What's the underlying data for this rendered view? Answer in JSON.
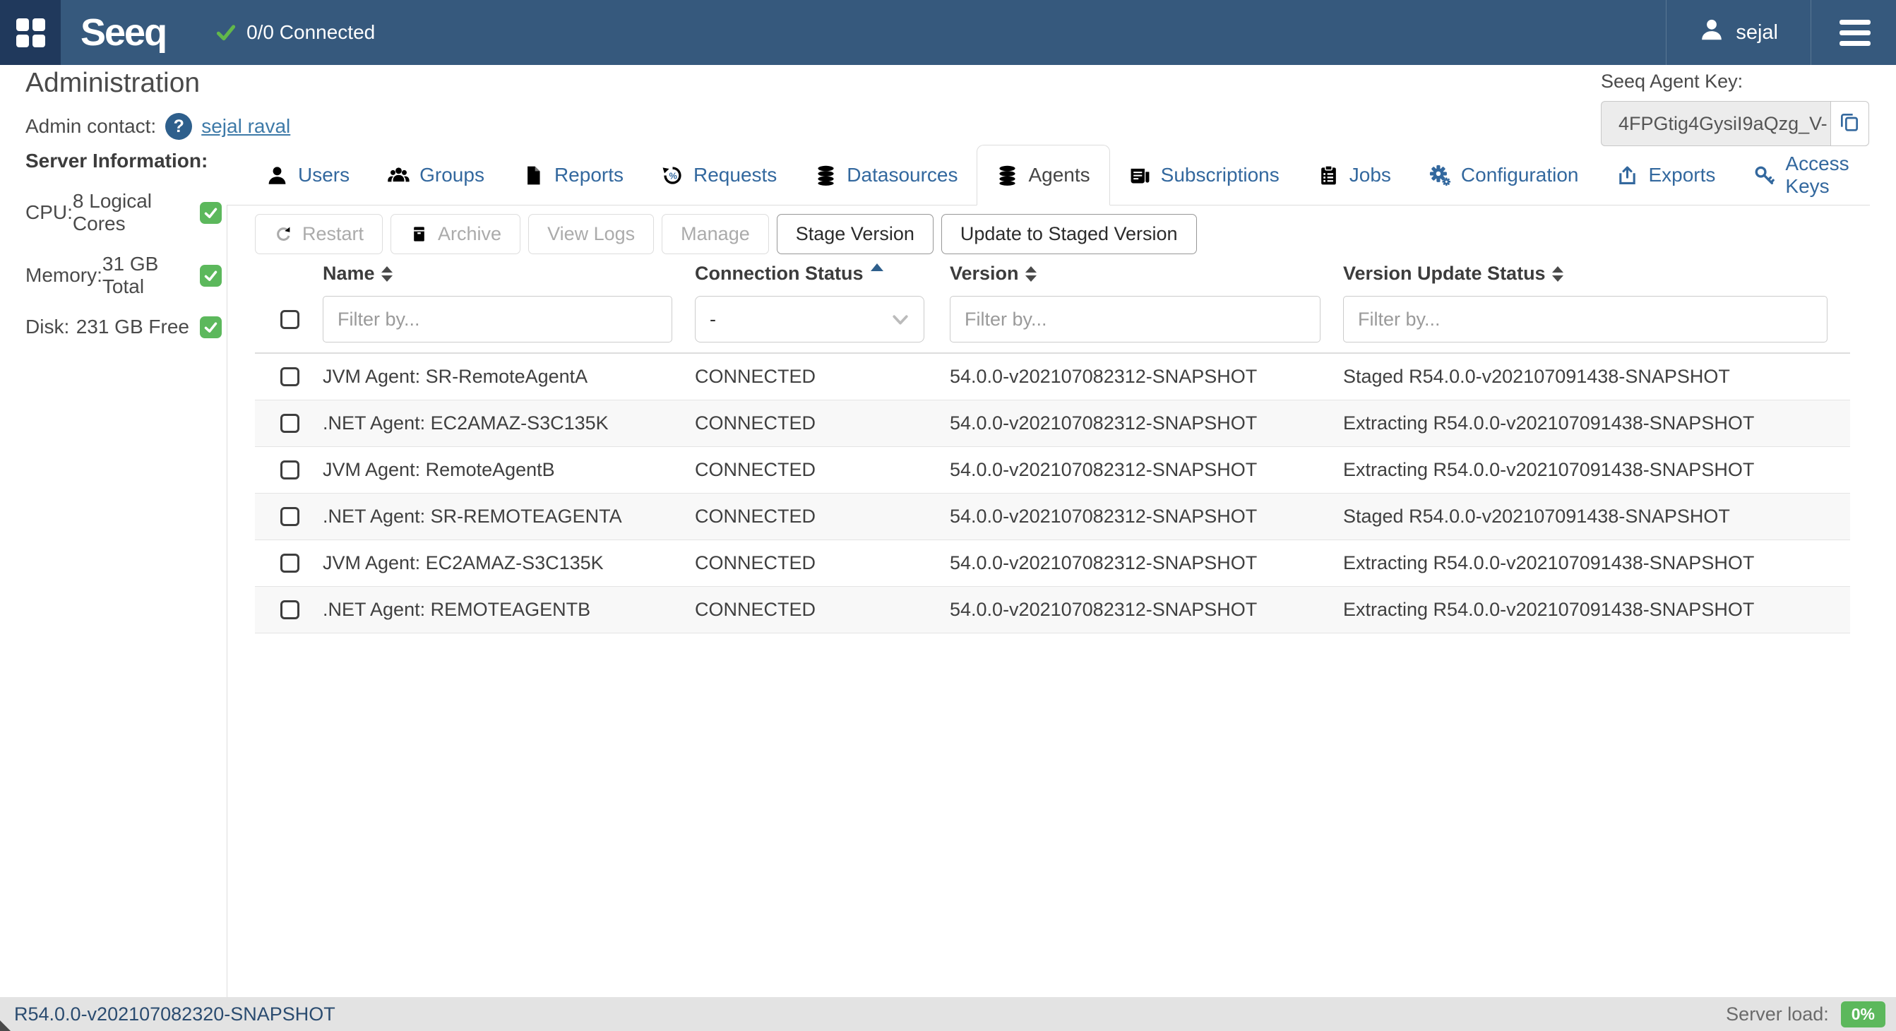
{
  "topbar": {
    "brand": "Seeq",
    "connected_label": "0/0 Connected",
    "username": "sejal"
  },
  "header": {
    "title": "Administration",
    "admin_contact_label": "Admin contact:",
    "admin_contact_name": "sejal raval",
    "agent_key_label": "Seeq Agent Key:",
    "agent_key_value": "4FPGtig4GysiI9aQzg_V-"
  },
  "server_info": {
    "title": "Server Information:",
    "rows": [
      {
        "label": "CPU:",
        "value": "8 Logical Cores",
        "status": "ok"
      },
      {
        "label": "Memory:",
        "value": "31 GB Total",
        "status": "ok"
      },
      {
        "label": "Disk:",
        "value": "231 GB Free",
        "status": "ok"
      }
    ]
  },
  "tabs": [
    {
      "label": "Users",
      "icon": "user-icon",
      "active": false
    },
    {
      "label": "Groups",
      "icon": "users-icon",
      "active": false
    },
    {
      "label": "Reports",
      "icon": "file-icon",
      "active": false
    },
    {
      "label": "Requests",
      "icon": "requests-icon",
      "active": false
    },
    {
      "label": "Datasources",
      "icon": "database-icon",
      "active": false
    },
    {
      "label": "Agents",
      "icon": "database-icon",
      "active": true
    },
    {
      "label": "Subscriptions",
      "icon": "subscriptions-icon",
      "active": false
    },
    {
      "label": "Jobs",
      "icon": "jobs-icon",
      "active": false
    },
    {
      "label": "Configuration",
      "icon": "gears-icon",
      "active": false
    },
    {
      "label": "Exports",
      "icon": "export-icon",
      "active": false
    },
    {
      "label": "Access Keys",
      "icon": "key-icon",
      "active": false
    }
  ],
  "toolbar": {
    "buttons": [
      {
        "label": "Restart",
        "icon": "refresh-icon",
        "enabled": false
      },
      {
        "label": "Archive",
        "icon": "archive-icon",
        "enabled": false
      },
      {
        "label": "View Logs",
        "icon": null,
        "enabled": false
      },
      {
        "label": "Manage",
        "icon": null,
        "enabled": false
      },
      {
        "label": "Stage Version",
        "icon": null,
        "enabled": true
      },
      {
        "label": "Update to Staged Version",
        "icon": null,
        "enabled": true
      }
    ]
  },
  "table": {
    "columns": [
      {
        "label": "Name",
        "sort": "none"
      },
      {
        "label": "Connection Status",
        "sort": "asc"
      },
      {
        "label": "Version",
        "sort": "none"
      },
      {
        "label": "Version Update Status",
        "sort": "none"
      }
    ],
    "filters": {
      "name_placeholder": "Filter by...",
      "status_value": "-",
      "version_placeholder": "Filter by...",
      "update_placeholder": "Filter by..."
    },
    "rows": [
      {
        "name": "JVM Agent: SR-RemoteAgentA",
        "connection_status": "CONNECTED",
        "version": "54.0.0-v202107082312-SNAPSHOT",
        "update_status": "Staged R54.0.0-v202107091438-SNAPSHOT"
      },
      {
        "name": ".NET Agent: EC2AMAZ-S3C135K",
        "connection_status": "CONNECTED",
        "version": "54.0.0-v202107082312-SNAPSHOT",
        "update_status": "Extracting R54.0.0-v202107091438-SNAPSHOT"
      },
      {
        "name": "JVM Agent: RemoteAgentB",
        "connection_status": "CONNECTED",
        "version": "54.0.0-v202107082312-SNAPSHOT",
        "update_status": "Extracting R54.0.0-v202107091438-SNAPSHOT"
      },
      {
        "name": ".NET Agent: SR-REMOTEAGENTA",
        "connection_status": "CONNECTED",
        "version": "54.0.0-v202107082312-SNAPSHOT",
        "update_status": "Staged R54.0.0-v202107091438-SNAPSHOT"
      },
      {
        "name": "JVM Agent: EC2AMAZ-S3C135K",
        "connection_status": "CONNECTED",
        "version": "54.0.0-v202107082312-SNAPSHOT",
        "update_status": "Extracting R54.0.0-v202107091438-SNAPSHOT"
      },
      {
        "name": ".NET Agent: REMOTEAGENTB",
        "connection_status": "CONNECTED",
        "version": "54.0.0-v202107082312-SNAPSHOT",
        "update_status": "Extracting R54.0.0-v202107091438-SNAPSHOT"
      }
    ]
  },
  "statusbar": {
    "version": "R54.0.0-v202107082320-SNAPSHOT",
    "server_load_label": "Server load:",
    "server_load_value": "0%"
  },
  "colors": {
    "topbar_navy": "#36597D",
    "topbar_dark_square": "#20395C",
    "accent_blue": "#33689E",
    "link_blue": "#3E7AA8",
    "success_green": "#5CB85C",
    "status_text_navy": "#2B4C70"
  }
}
